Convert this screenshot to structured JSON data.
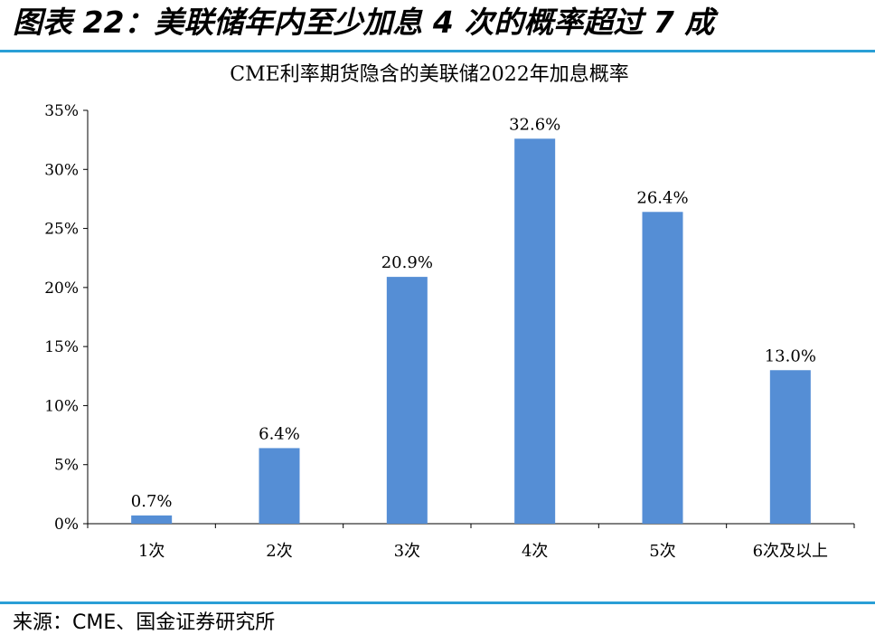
{
  "figure": {
    "title": "图表 22：美联储年内至少加息 4 次的概率超过 7 成",
    "source": "来源：CME、国金证券研究所"
  },
  "chart_data": {
    "type": "bar",
    "title": "CME利率期货隐含的美联储2022年加息概率",
    "xlabel": "",
    "ylabel": "",
    "categories": [
      "1次",
      "2次",
      "3次",
      "4次",
      "5次",
      "6次及以上"
    ],
    "values": [
      0.7,
      6.4,
      20.9,
      32.6,
      26.4,
      13.0
    ],
    "data_labels": [
      "0.7%",
      "6.4%",
      "20.9%",
      "32.6%",
      "26.4%",
      "13.0%"
    ],
    "ylim": [
      0,
      35
    ],
    "yticks": [
      0,
      5,
      10,
      15,
      20,
      25,
      30,
      35
    ],
    "ytick_labels": [
      "0%",
      "5%",
      "10%",
      "15%",
      "20%",
      "25%",
      "30%",
      "35%"
    ],
    "bar_color": "#558ed5",
    "grid": false,
    "legend": "none"
  },
  "colors": {
    "rule": "#2a9fd6"
  }
}
